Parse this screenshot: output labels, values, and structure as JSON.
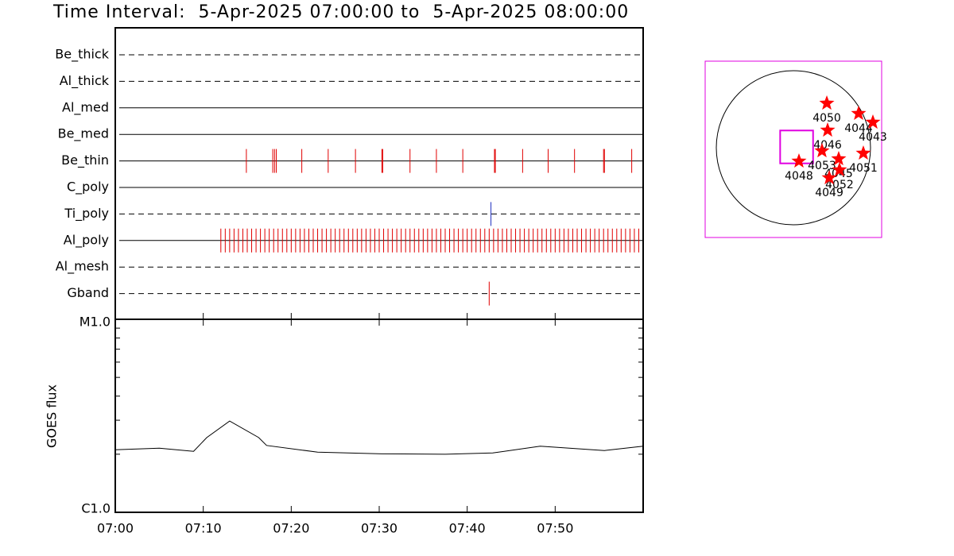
{
  "chart_data": [
    {
      "type": "event",
      "title": "Time Interval:  5-Apr-2025 07:00:00 to  5-Apr-2025 08:00:00",
      "xlim": [
        0,
        60
      ],
      "xticks": [
        0,
        10,
        20,
        30,
        40,
        50
      ],
      "rows": [
        {
          "name": "Be_thick",
          "line": "dashed",
          "color": "#e00000",
          "events": []
        },
        {
          "name": "Al_thick",
          "line": "dashed",
          "color": "#e00000",
          "events": []
        },
        {
          "name": "Al_med",
          "line": "solid",
          "color": "#e00000",
          "events": []
        },
        {
          "name": "Be_med",
          "line": "solid",
          "color": "#e00000",
          "events": []
        },
        {
          "name": "Be_thin",
          "line": "solid",
          "color": "#e00000",
          "events": [
            14.9,
            17.9,
            18.1,
            18.3,
            21.2,
            24.2,
            27.3,
            30.3,
            30.4,
            33.5,
            36.5,
            39.5,
            43.1,
            43.2,
            46.3,
            49.2,
            52.2,
            55.5,
            55.6,
            58.7
          ]
        },
        {
          "name": "C_poly",
          "line": "solid",
          "color": "#e00000",
          "events": []
        },
        {
          "name": "Ti_poly",
          "line": "dashed",
          "color": "#2030c0",
          "events": [
            42.7
          ]
        },
        {
          "name": "Al_poly",
          "line": "solid",
          "color": "#e00000",
          "events": [
            12,
            12.5,
            13,
            13.5,
            14,
            14.5,
            15,
            15.5,
            16,
            16.5,
            17,
            17.5,
            18,
            18.5,
            19,
            19.5,
            20,
            20.5,
            21,
            21.5,
            22,
            22.5,
            23,
            23.5,
            24,
            24.5,
            25,
            25.5,
            26,
            26.5,
            27,
            27.5,
            28,
            28.5,
            29,
            29.5,
            30,
            30.5,
            31,
            31.5,
            32,
            32.5,
            33,
            33.5,
            34,
            34.5,
            35,
            35.5,
            36,
            36.5,
            37,
            37.5,
            38,
            38.5,
            39,
            39.5,
            40,
            40.5,
            41,
            41.5,
            42,
            42.5,
            43,
            43.5,
            44,
            44.5,
            45,
            45.5,
            46,
            46.5,
            47,
            47.5,
            48,
            48.5,
            49,
            49.5,
            50,
            50.5,
            51,
            51.5,
            52,
            52.5,
            53,
            53.5,
            54,
            54.5,
            55,
            55.5,
            56,
            56.5,
            57,
            57.5,
            58,
            58.5,
            59,
            59.5
          ]
        },
        {
          "name": "Al_mesh",
          "line": "dashed",
          "color": "#e00000",
          "events": []
        },
        {
          "name": "Gband",
          "line": "dashed",
          "color": "#e00000",
          "events": [
            42.5
          ]
        }
      ]
    },
    {
      "type": "line",
      "ylabel": "GOES flux",
      "log_y": true,
      "xlim": [
        0,
        60
      ],
      "xticks": [
        {
          "value": 0,
          "label": "07:00"
        },
        {
          "value": 10,
          "label": "07:10"
        },
        {
          "value": 20,
          "label": "07:20"
        },
        {
          "value": 30,
          "label": "07:30"
        },
        {
          "value": 40,
          "label": "07:40"
        },
        {
          "value": 50,
          "label": "07:50"
        }
      ],
      "ylim": [
        1e-06,
        1e-05
      ],
      "yticks": [
        {
          "value": 1e-06,
          "label": "C1.0"
        },
        {
          "value": 1e-05,
          "label": "M1.0"
        }
      ],
      "minor_yticks": [
        2e-06,
        3e-06,
        4e-06,
        5e-06,
        6e-06,
        7e-06,
        8e-06,
        9e-06
      ],
      "x": [
        0,
        5,
        8.9,
        10.4,
        13,
        16.3,
        17.2,
        23,
        30.3,
        37.5,
        42.9,
        48.3,
        55.6,
        60
      ],
      "series": [
        {
          "color": "#000000",
          "values": [
            2.11e-06,
            2.15e-06,
            2.07e-06,
            2.44e-06,
            2.97e-06,
            2.44e-06,
            2.22e-06,
            2.05e-06,
            2.01e-06,
            2e-06,
            2.03e-06,
            2.2e-06,
            2.09e-06,
            2.2e-06
          ]
        }
      ]
    },
    {
      "type": "map",
      "color": "#ff0000",
      "fov_color": "#e000e0",
      "fov": {
        "x": 40,
        "y": 10,
        "width": 410,
        "height": 410
      },
      "regions": [
        {
          "label": "4050",
          "x": 416,
          "y": 554
        },
        {
          "label": "4044",
          "x": 812,
          "y": 426
        },
        {
          "label": "4043",
          "x": 990,
          "y": 317
        },
        {
          "label": "4046",
          "x": 426,
          "y": 218
        },
        {
          "label": "4053",
          "x": 356,
          "y": -40
        },
        {
          "label": "4045",
          "x": 564,
          "y": -139
        },
        {
          "label": "4051",
          "x": 871,
          "y": -69
        },
        {
          "label": "4048",
          "x": 69,
          "y": -168
        },
        {
          "label": "4052",
          "x": 574,
          "y": -277
        },
        {
          "label": "4049",
          "x": 446,
          "y": -376
        }
      ]
    }
  ]
}
